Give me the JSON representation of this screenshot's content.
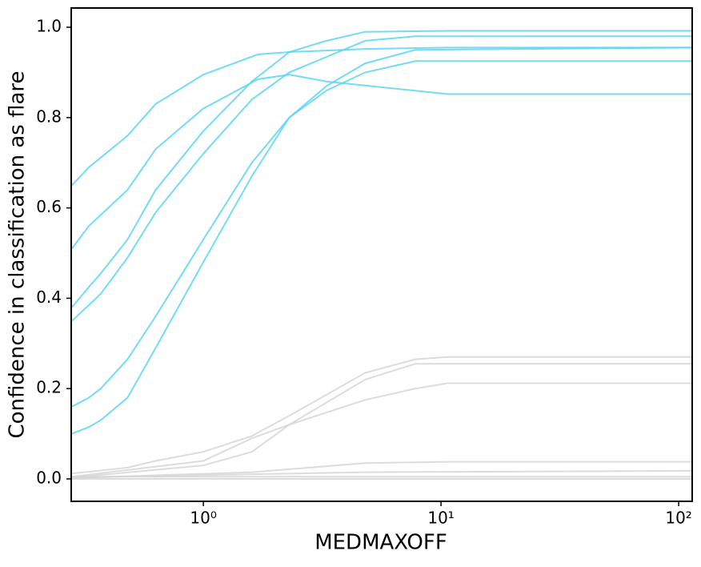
{
  "chart_data": {
    "type": "line",
    "xlabel": "MEDMAXOFF",
    "ylabel": "Confidence in classification as flare",
    "xscale": "log",
    "grid": false,
    "xlim": [
      0.278,
      114
    ],
    "ylim": [
      -0.0496,
      1.0426
    ],
    "xticks": [
      {
        "value": 1,
        "label": "10⁰"
      },
      {
        "value": 10,
        "label": "10¹"
      },
      {
        "value": 100,
        "label": "10²"
      }
    ],
    "yticks": [
      {
        "value": 0,
        "label": "0.0"
      },
      0.2,
      0.4,
      0.6,
      0.8,
      {
        "value": 1,
        "label": "1.0"
      }
    ],
    "series": [
      {
        "color": "#5bd5f5",
        "x": [
          0.28,
          0.33,
          0.48,
          0.63,
          1.0,
          1.7,
          2.3,
          4.8,
          10.7,
          114
        ],
        "values": [
          0.65,
          0.69,
          0.76,
          0.83,
          0.895,
          0.94,
          0.945,
          0.952,
          0.955,
          0.955
        ]
      },
      {
        "color": "#5bd5f5",
        "x": [
          0.28,
          0.33,
          0.48,
          0.63,
          1.0,
          1.7,
          2.3,
          3.3,
          10.7,
          114
        ],
        "values": [
          0.51,
          0.56,
          0.64,
          0.73,
          0.82,
          0.885,
          0.895,
          0.88,
          0.852,
          0.852
        ]
      },
      {
        "color": "#5bd5f5",
        "x": [
          0.28,
          0.33,
          0.37,
          0.48,
          0.63,
          1.0,
          1.6,
          2.3,
          3.3,
          4.8,
          10.7,
          114
        ],
        "values": [
          0.38,
          0.425,
          0.455,
          0.53,
          0.64,
          0.77,
          0.88,
          0.945,
          0.97,
          0.99,
          0.992,
          0.992
        ]
      },
      {
        "color": "#5bd5f5",
        "x": [
          0.28,
          0.33,
          0.37,
          0.48,
          0.63,
          1.0,
          1.6,
          2.3,
          4.8,
          7.8,
          114
        ],
        "values": [
          0.35,
          0.385,
          0.41,
          0.49,
          0.59,
          0.72,
          0.84,
          0.9,
          0.97,
          0.98,
          0.98
        ]
      },
      {
        "color": "#5bd5f5",
        "x": [
          0.28,
          0.33,
          0.37,
          0.48,
          0.63,
          1.0,
          1.6,
          2.3,
          3.3,
          4.8,
          7.8,
          114
        ],
        "values": [
          0.16,
          0.18,
          0.2,
          0.265,
          0.36,
          0.53,
          0.7,
          0.8,
          0.87,
          0.92,
          0.95,
          0.955
        ]
      },
      {
        "color": "#5bd5f5",
        "x": [
          0.28,
          0.33,
          0.37,
          0.48,
          0.63,
          1.0,
          1.6,
          2.3,
          3.3,
          4.8,
          7.8,
          114
        ],
        "values": [
          0.1,
          0.115,
          0.13,
          0.18,
          0.29,
          0.48,
          0.67,
          0.8,
          0.86,
          0.9,
          0.925,
          0.925
        ]
      },
      {
        "color": "#d6d6d6",
        "x": [
          0.28,
          0.48,
          0.63,
          1.0,
          1.6,
          2.3,
          4.8,
          7.8,
          10.7,
          114
        ],
        "values": [
          0.012,
          0.025,
          0.04,
          0.06,
          0.095,
          0.14,
          0.235,
          0.265,
          0.27,
          0.27
        ]
      },
      {
        "color": "#d6d6d6",
        "x": [
          0.28,
          1.0,
          1.6,
          2.3,
          4.8,
          7.8,
          10.7,
          114
        ],
        "values": [
          0.005,
          0.04,
          0.09,
          0.12,
          0.175,
          0.2,
          0.212,
          0.212
        ]
      },
      {
        "color": "#d6d6d6",
        "x": [
          0.28,
          1.0,
          1.6,
          2.3,
          4.8,
          7.8,
          114
        ],
        "values": [
          0.003,
          0.03,
          0.06,
          0.12,
          0.22,
          0.255,
          0.255
        ]
      },
      {
        "color": "#d6d6d6",
        "x": [
          0.28,
          1.6,
          4.8,
          10.7,
          114
        ],
        "values": [
          0.002,
          0.015,
          0.035,
          0.038,
          0.038
        ]
      },
      {
        "color": "#d6d6d6",
        "x": [
          0.28,
          4.8,
          114
        ],
        "values": [
          0.003,
          0.015,
          0.018
        ]
      },
      {
        "color": "#d6d6d6",
        "x": [
          0.28,
          114
        ],
        "values": [
          0.005,
          0.005
        ]
      },
      {
        "color": "#d6d6d6",
        "x": [
          0.28,
          114
        ],
        "values": [
          0.0,
          0.0
        ]
      }
    ]
  }
}
